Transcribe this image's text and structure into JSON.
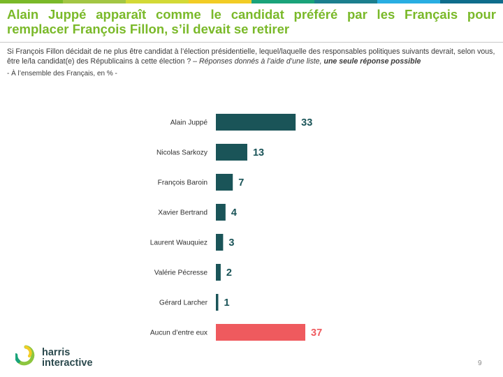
{
  "title": "Alain Juppé apparaît comme le candidat préféré par les Français pour remplacer François Fillon, s’il devait se retirer",
  "question": {
    "text": "Si François Fillon décidait de ne plus être candidat à l’élection présidentielle, lequel/laquelle des responsables politiques suivants devrait, selon vous, être le/la candidat(e) des Républicains à cette élection ? – ",
    "note": "Réponses donnés à l’aide d’une liste, ",
    "note_bold": "une seule réponse possible"
  },
  "base": "- À l’ensemble des Français, en % -",
  "colors": {
    "title": "#7ab929",
    "bar_default": "#1a5458",
    "bar_highlight": "#ef5a5e",
    "stripe": [
      "#7ab929",
      "#a3c644",
      "#d3d936",
      "#f2cc25",
      "#1aa37a",
      "#1c7f8e",
      "#29aee2",
      "#0f6d8c"
    ]
  },
  "chart_data": {
    "type": "bar",
    "orientation": "horizontal",
    "categories": [
      "Alain Juppé",
      "Nicolas Sarkozy",
      "François Baroin",
      "Xavier Bertrand",
      "Laurent Wauquiez",
      "Valérie Pécresse",
      "Gérard Larcher",
      "Aucun d’entre eux"
    ],
    "values": [
      33,
      13,
      7,
      4,
      3,
      2,
      1,
      37
    ],
    "highlight": [
      false,
      false,
      false,
      false,
      false,
      false,
      false,
      true
    ],
    "xlim": [
      0,
      37
    ],
    "grid": false,
    "legend": "none"
  },
  "logo": {
    "line1": "harris",
    "line2": "interactive"
  },
  "page_number": "9"
}
